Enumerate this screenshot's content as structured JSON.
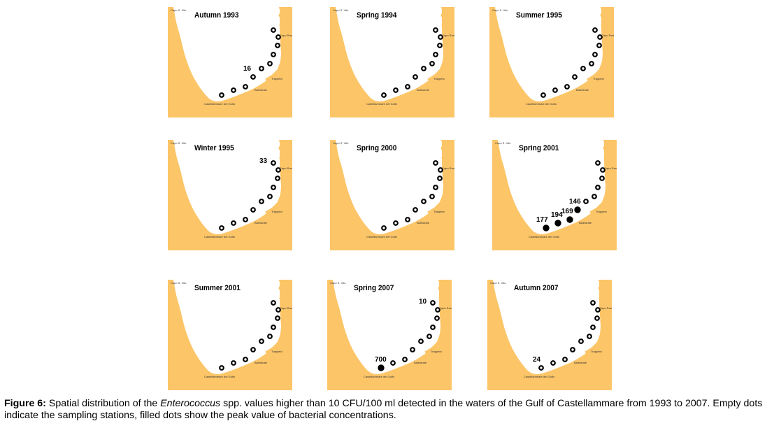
{
  "figure": {
    "panels": [
      {
        "id": "p1",
        "title": "Autumn 1993",
        "values": [
          {
            "station": 3,
            "label": "16"
          }
        ],
        "filled": []
      },
      {
        "id": "p2",
        "title": "Spring 1994",
        "values": [],
        "filled": []
      },
      {
        "id": "p3",
        "title": "Summer 1995",
        "values": [],
        "filled": []
      },
      {
        "id": "p4",
        "title": "Winter 1995",
        "values": [
          {
            "station": 9,
            "label": "33"
          }
        ],
        "filled": []
      },
      {
        "id": "p5",
        "title": "Spring 2000",
        "values": [],
        "filled": []
      },
      {
        "id": "p6",
        "title": "Spring 2001",
        "values": [
          {
            "station": 0,
            "label": "177"
          },
          {
            "station": 1,
            "label": "194"
          },
          {
            "station": 2,
            "label": "169"
          },
          {
            "station": 3,
            "label": "146"
          }
        ],
        "filled": [
          0,
          1,
          2,
          3
        ]
      },
      {
        "id": "p7",
        "title": "Summer 2001",
        "values": [],
        "filled": []
      },
      {
        "id": "p8",
        "title": "Spring 2007",
        "values": [
          {
            "station": 0,
            "label": "700"
          },
          {
            "station": 9,
            "label": "10"
          }
        ],
        "filled": [
          0
        ]
      },
      {
        "id": "p9",
        "title": "Autumn 2007",
        "values": [
          {
            "station": 0,
            "label": "24"
          }
        ],
        "filled": []
      }
    ],
    "map_labels": {
      "capo": "Capo S. Vito",
      "capo_rama": "Capo Rama",
      "trappeto": "Trappeto",
      "balestrate": "Balestrate",
      "castellammare": "Castellammare del Golfo"
    }
  },
  "caption": {
    "label": "Figure 6:",
    "text_before": " Spatial distribution of the ",
    "italic": "Enterococcus",
    "text_after": " spp. values higher than 10 CFU/100 ml detected in the waters of the Gulf of Castellammare from 1993 to 2007. Empty dots indicate the sampling stations, filled dots show the peak value of bacterial concentrations."
  },
  "colors": {
    "land": "#FCC567",
    "sea": "#FFFFFF",
    "dot": "#000000"
  }
}
